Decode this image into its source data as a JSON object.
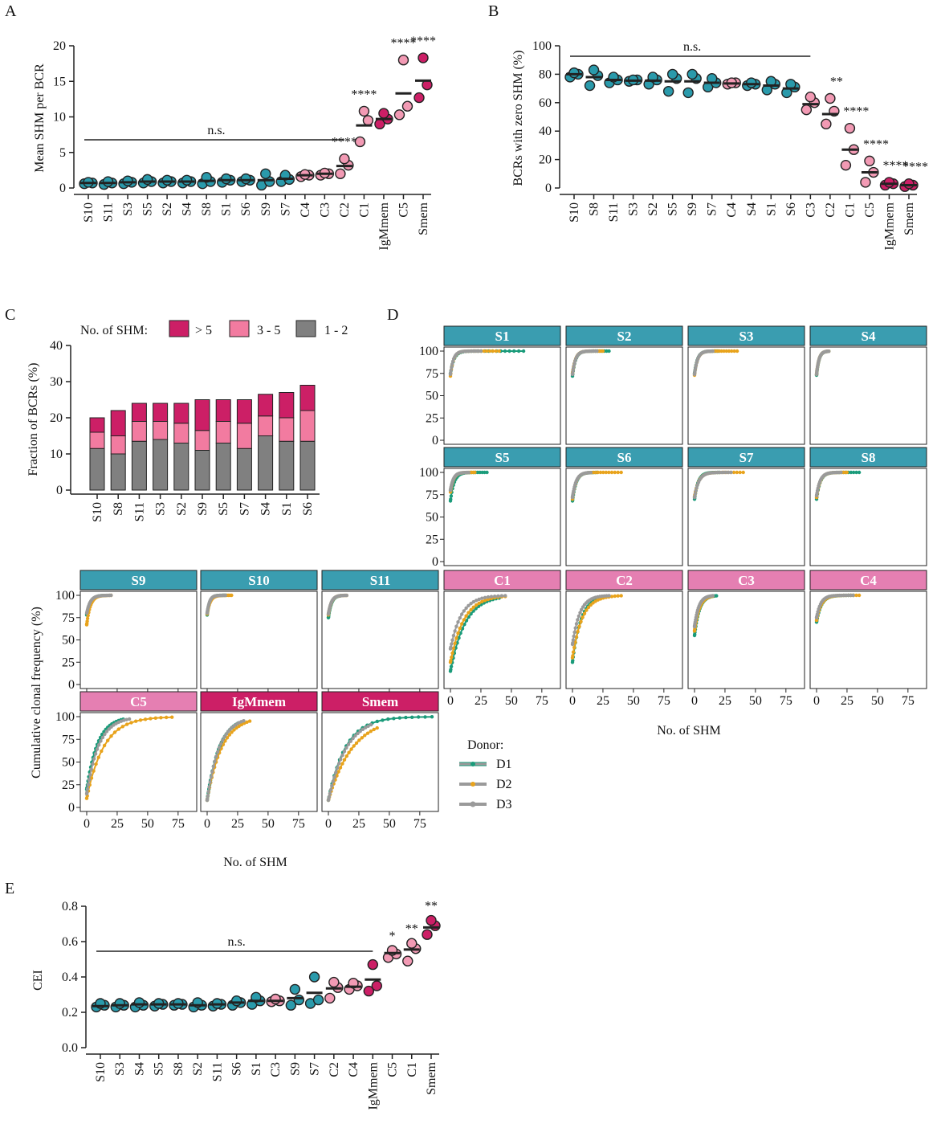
{
  "colors": {
    "healthy": "#2a9aab",
    "control": "#f29ab4",
    "mem": "#cc1f66",
    "dark": "#222222",
    "c_gt5": "#cc1f66",
    "c_3to5": "#f27ba0",
    "c_1to2": "#808080",
    "strip_S": "#3a9db0",
    "strip_C": "#e57fb2",
    "strip_mem": "#cc1f66",
    "d1": "#1a9b7a",
    "d2": "#e8a31c",
    "d3": "#9a9a9a"
  },
  "panel_labels": {
    "a": "A",
    "b": "B",
    "c": "C",
    "d": "D",
    "e": "E"
  },
  "annotations": {
    "ns": "n.s."
  },
  "chart_data": [
    {
      "id": "A",
      "type": "scatter",
      "title": "",
      "ylabel": "Mean SHM per BCR",
      "ylim": [
        0,
        20
      ],
      "yticks": [
        0,
        5,
        10,
        15,
        20
      ],
      "categories": [
        "S10",
        "S11",
        "S3",
        "S5",
        "S2",
        "S4",
        "S8",
        "S1",
        "S6",
        "S9",
        "S7",
        "C4",
        "C3",
        "C2",
        "C1",
        "IgMmem",
        "C5",
        "Smem"
      ],
      "groups": [
        "S",
        "S",
        "S",
        "S",
        "S",
        "S",
        "S",
        "S",
        "S",
        "S",
        "S",
        "C",
        "C",
        "C",
        "C",
        "M",
        "C",
        "M"
      ],
      "means": [
        0.7,
        0.7,
        0.8,
        0.9,
        0.9,
        0.9,
        1.0,
        1.1,
        1.1,
        1.1,
        1.3,
        1.8,
        2.0,
        3.1,
        8.8,
        9.7,
        13.3,
        15.1
      ],
      "points": [
        [
          0.6,
          0.7,
          0.8
        ],
        [
          0.5,
          0.7,
          0.9
        ],
        [
          0.6,
          0.8,
          1.0
        ],
        [
          0.7,
          0.9,
          1.2
        ],
        [
          0.7,
          0.9,
          1.1
        ],
        [
          0.7,
          0.9,
          1.1
        ],
        [
          0.6,
          0.9,
          1.5
        ],
        [
          0.8,
          1.1,
          1.3
        ],
        [
          0.9,
          1.1,
          1.3
        ],
        [
          0.4,
          0.9,
          2.0
        ],
        [
          0.9,
          1.2,
          1.8
        ],
        [
          1.6,
          1.8,
          1.9
        ],
        [
          1.8,
          2.0,
          2.1
        ],
        [
          2.0,
          3.2,
          4.1
        ],
        [
          6.5,
          9.5,
          10.8
        ],
        [
          9.0,
          9.7,
          10.5
        ],
        [
          10.3,
          11.5,
          18.0
        ],
        [
          12.7,
          14.5,
          18.3
        ]
      ],
      "ns_span": [
        "S10",
        "C2"
      ],
      "sig": {
        "C2": "****",
        "C1": "****",
        "C5": "****",
        "Smem": "****"
      }
    },
    {
      "id": "B",
      "type": "scatter",
      "title": "",
      "ylabel": "BCRs with zero SHM (%)",
      "ylim": [
        0,
        100
      ],
      "yticks": [
        0,
        20,
        40,
        60,
        80,
        100
      ],
      "categories": [
        "S10",
        "S8",
        "S11",
        "S3",
        "S2",
        "S5",
        "S9",
        "S7",
        "C4",
        "S4",
        "S1",
        "S6",
        "C3",
        "C2",
        "C1",
        "C5",
        "IgMmem",
        "Smem"
      ],
      "groups": [
        "S",
        "S",
        "S",
        "S",
        "S",
        "S",
        "S",
        "S",
        "C",
        "S",
        "S",
        "S",
        "C",
        "C",
        "C",
        "C",
        "M",
        "M"
      ],
      "means": [
        80,
        78,
        76,
        75.5,
        75.5,
        75,
        75,
        74,
        73.5,
        73,
        72,
        70,
        59,
        52,
        27,
        11,
        3,
        2
      ],
      "points": [
        [
          78,
          80,
          81
        ],
        [
          72,
          79,
          83
        ],
        [
          74,
          76,
          78
        ],
        [
          75,
          76,
          76
        ],
        [
          73,
          76,
          78
        ],
        [
          68,
          77,
          80
        ],
        [
          67,
          77,
          80
        ],
        [
          71,
          74,
          77
        ],
        [
          73,
          74,
          74
        ],
        [
          72,
          73,
          74
        ],
        [
          69,
          73,
          75
        ],
        [
          67,
          71,
          73
        ],
        [
          55,
          60,
          64
        ],
        [
          45,
          54,
          63
        ],
        [
          16,
          27,
          42
        ],
        [
          4,
          11,
          19
        ],
        [
          2,
          3,
          4
        ],
        [
          1,
          2,
          3
        ]
      ],
      "ns_span": [
        "S10",
        "C3"
      ],
      "sig": {
        "C2": "**",
        "C1": "****",
        "C5": "****",
        "IgMmem": "****",
        "Smem": "****"
      }
    },
    {
      "id": "C",
      "type": "bar",
      "title": "",
      "ylabel": "Fraction of BCRs (%)",
      "ylim": [
        0,
        40
      ],
      "yticks": [
        0,
        10,
        20,
        30,
        40
      ],
      "legend_title": "No. of SHM:",
      "categories": [
        "S10",
        "S8",
        "S11",
        "S3",
        "S2",
        "S9",
        "S5",
        "S7",
        "S4",
        "S1",
        "S6"
      ],
      "series": [
        {
          "name": "1 - 2",
          "values": [
            11.5,
            10.0,
            13.5,
            14.0,
            13.0,
            11.0,
            13.0,
            11.5,
            15.0,
            13.5,
            13.5
          ]
        },
        {
          "name": "3 - 5",
          "values": [
            4.5,
            5.0,
            5.5,
            5.0,
            5.5,
            5.5,
            6.0,
            7.0,
            5.5,
            6.5,
            8.5
          ]
        },
        {
          "name": "> 5",
          "values": [
            4.0,
            7.0,
            5.0,
            5.0,
            5.5,
            8.5,
            6.0,
            6.5,
            6.0,
            7.0,
            7.0
          ]
        }
      ]
    },
    {
      "id": "D",
      "type": "line",
      "title": "",
      "xlabel": "No. of SHM",
      "ylabel": "Cumulative clonal frequency (%)",
      "xticks": [
        0,
        25,
        50,
        75
      ],
      "yticks": [
        0,
        25,
        50,
        75,
        100
      ],
      "legend_title": "Donor:",
      "donors": [
        "D1",
        "D2",
        "D3"
      ],
      "facets": [
        {
          "name": "S1",
          "group": "S",
          "params": [
            [
              75,
              60,
              3
            ],
            [
              72,
              40,
              2.5
            ],
            [
              74,
              25,
              2.5
            ]
          ]
        },
        {
          "name": "S2",
          "group": "S",
          "params": [
            [
              72,
              30,
              2.5
            ],
            [
              75,
              25,
              2.5
            ],
            [
              74,
              20,
              2.5
            ]
          ]
        },
        {
          "name": "S3",
          "group": "S",
          "params": [
            [
              75,
              20,
              2.5
            ],
            [
              73,
              35,
              2.5
            ],
            [
              74,
              15,
              2.5
            ]
          ]
        },
        {
          "name": "S4",
          "group": "S",
          "params": [
            [
              73,
              10,
              2
            ],
            [
              74,
              10,
              2
            ],
            [
              74,
              10,
              2
            ]
          ]
        },
        {
          "name": "S5",
          "group": "S",
          "params": [
            [
              68,
              30,
              3
            ],
            [
              78,
              20,
              2.5
            ],
            [
              80,
              15,
              2.5
            ]
          ]
        },
        {
          "name": "S6",
          "group": "S",
          "params": [
            [
              68,
              20,
              3
            ],
            [
              70,
              40,
              3
            ],
            [
              72,
              15,
              3
            ]
          ]
        },
        {
          "name": "S7",
          "group": "S",
          "params": [
            [
              70,
              20,
              3
            ],
            [
              73,
              40,
              3.5
            ],
            [
              72,
              30,
              3.5
            ]
          ]
        },
        {
          "name": "S8",
          "group": "S",
          "params": [
            [
              70,
              35,
              3
            ],
            [
              72,
              25,
              3
            ],
            [
              74,
              20,
              3
            ]
          ]
        },
        {
          "name": "S9",
          "group": "S",
          "params": [
            [
              78,
              15,
              3
            ],
            [
              67,
              20,
              3
            ],
            [
              80,
              20,
              3
            ]
          ]
        },
        {
          "name": "S10",
          "group": "S",
          "params": [
            [
              78,
              15,
              2
            ],
            [
              79,
              20,
              2.5
            ],
            [
              80,
              15,
              2
            ]
          ]
        },
        {
          "name": "S11",
          "group": "S",
          "params": [
            [
              75,
              10,
              2.5
            ],
            [
              78,
              15,
              2.5
            ],
            [
              79,
              15,
              2.5
            ]
          ]
        },
        {
          "name": "C1",
          "group": "C",
          "params": [
            [
              15,
              40,
              12
            ],
            [
              25,
              45,
              11
            ],
            [
              40,
              45,
              9
            ]
          ]
        },
        {
          "name": "C2",
          "group": "C",
          "params": [
            [
              25,
              30,
              7
            ],
            [
              30,
              40,
              8
            ],
            [
              45,
              30,
              6
            ]
          ]
        },
        {
          "name": "C3",
          "group": "C",
          "params": [
            [
              55,
              18,
              4
            ],
            [
              60,
              15,
              4
            ],
            [
              65,
              15,
              3.5
            ]
          ]
        },
        {
          "name": "C4",
          "group": "C",
          "params": [
            [
              70,
              30,
              4
            ],
            [
              72,
              35,
              4
            ],
            [
              75,
              30,
              3.5
            ]
          ]
        },
        {
          "name": "C5",
          "group": "C",
          "params": [
            [
              20,
              30,
              9
            ],
            [
              10,
              70,
              14
            ],
            [
              15,
              35,
              10
            ]
          ]
        },
        {
          "name": "IgMmem",
          "group": "M",
          "params": [
            [
              8,
              25,
              10
            ],
            [
              8,
              35,
              12
            ],
            [
              8,
              30,
              10
            ]
          ]
        },
        {
          "name": "Smem",
          "group": "M",
          "params": [
            [
              8,
              85,
              14
            ],
            [
              8,
              40,
              20
            ],
            [
              8,
              35,
              15
            ]
          ]
        }
      ]
    },
    {
      "id": "E",
      "type": "scatter",
      "title": "",
      "ylabel": "CEI",
      "ylim": [
        0,
        0.8
      ],
      "yticks": [
        0.0,
        0.2,
        0.4,
        0.6,
        0.8
      ],
      "categories": [
        "S10",
        "S3",
        "S4",
        "S5",
        "S8",
        "S2",
        "S11",
        "S6",
        "S1",
        "C3",
        "S9",
        "S7",
        "C2",
        "C4",
        "IgMmem",
        "C5",
        "C1",
        "Smem"
      ],
      "groups": [
        "S",
        "S",
        "S",
        "S",
        "S",
        "S",
        "S",
        "S",
        "S",
        "C",
        "S",
        "S",
        "C",
        "C",
        "M",
        "C",
        "C",
        "M"
      ],
      "means": [
        0.235,
        0.24,
        0.245,
        0.245,
        0.245,
        0.24,
        0.245,
        0.255,
        0.265,
        0.265,
        0.28,
        0.31,
        0.335,
        0.345,
        0.385,
        0.535,
        0.555,
        0.68
      ],
      "points": [
        [
          0.23,
          0.24,
          0.25
        ],
        [
          0.23,
          0.24,
          0.25
        ],
        [
          0.23,
          0.24,
          0.255
        ],
        [
          0.235,
          0.245,
          0.25
        ],
        [
          0.24,
          0.245,
          0.25
        ],
        [
          0.23,
          0.24,
          0.255
        ],
        [
          0.235,
          0.245,
          0.25
        ],
        [
          0.24,
          0.255,
          0.265
        ],
        [
          0.245,
          0.265,
          0.285
        ],
        [
          0.26,
          0.265,
          0.275
        ],
        [
          0.24,
          0.27,
          0.33
        ],
        [
          0.25,
          0.27,
          0.4
        ],
        [
          0.28,
          0.34,
          0.37
        ],
        [
          0.33,
          0.35,
          0.365
        ],
        [
          0.32,
          0.35,
          0.47
        ],
        [
          0.51,
          0.53,
          0.55
        ],
        [
          0.49,
          0.56,
          0.59
        ],
        [
          0.64,
          0.69,
          0.72
        ]
      ],
      "ns_span": [
        "S10",
        "IgMmem"
      ],
      "sig": {
        "C5": "*",
        "C1": "**",
        "Smem": "**"
      }
    }
  ]
}
